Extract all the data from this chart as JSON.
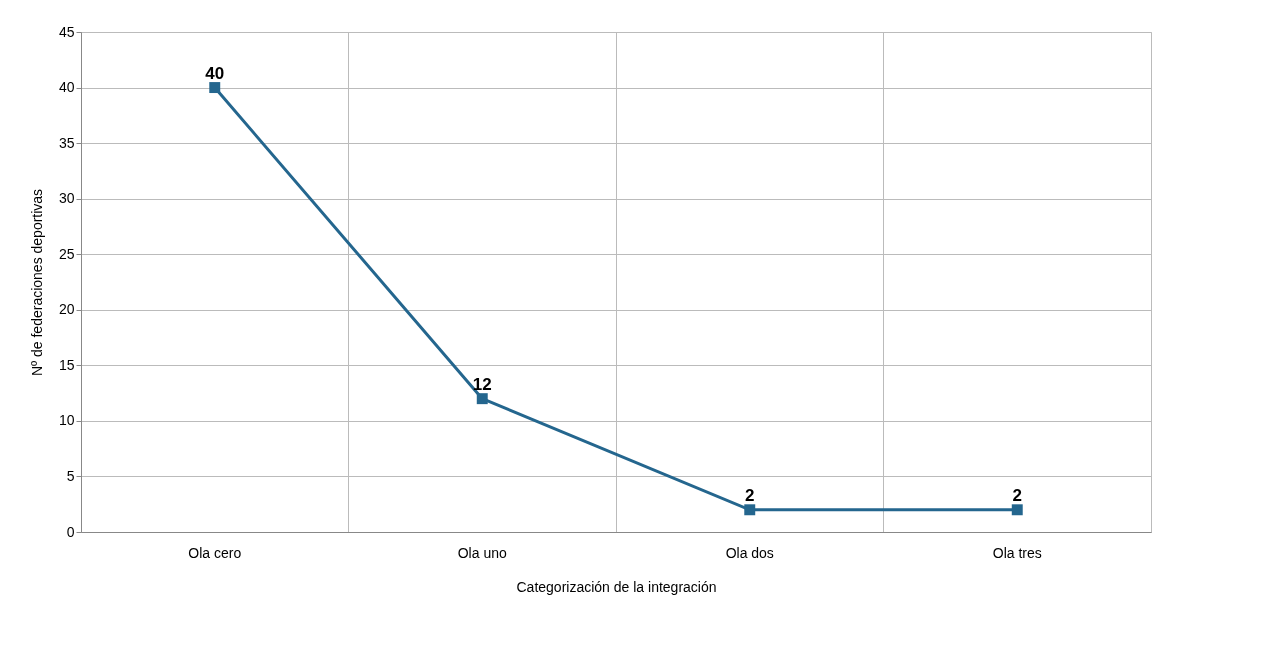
{
  "chart_data": {
    "type": "line",
    "xlabel": "Categorización de la integración",
    "ylabel": "Nº de federaciones deportivas",
    "categories": [
      "Ola cero",
      "Ola uno",
      "Ola dos",
      "Ola tres"
    ],
    "series": [
      {
        "color": "#24668e",
        "values": [
          40,
          12,
          2,
          2
        ]
      }
    ],
    "ylim": [
      0,
      45
    ],
    "yticks": [
      0,
      5,
      10,
      15,
      20,
      25,
      30,
      35,
      40,
      45
    ],
    "grid": true,
    "marker": "square",
    "line_style": "solid",
    "data_labels": true,
    "legend": false
  }
}
